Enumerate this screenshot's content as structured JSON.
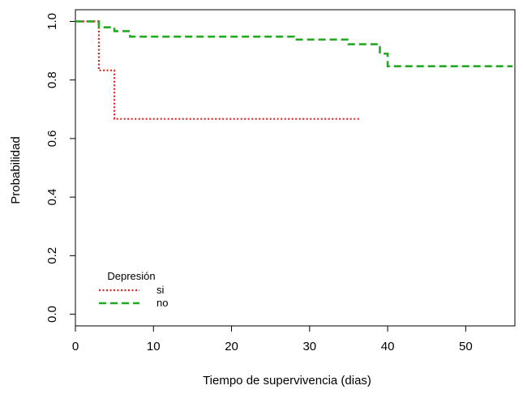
{
  "chart_data": {
    "type": "line",
    "step": true,
    "title": "",
    "xlabel": "Tiempo de supervivencia (dias)",
    "ylabel": "Probabilidad",
    "xlim": [
      0,
      56.3
    ],
    "ylim": [
      -0.04,
      1.04
    ],
    "x_ticks": [
      0,
      10,
      20,
      30,
      40,
      50
    ],
    "y_ticks": [
      0.0,
      0.2,
      0.4,
      0.6,
      0.8,
      1.0
    ],
    "x_tick_labels": [
      "0",
      "10",
      "20",
      "30",
      "40",
      "50"
    ],
    "y_tick_labels": [
      "0.0",
      "0.2",
      "0.4",
      "0.6",
      "0.8",
      "1.0"
    ],
    "grid": false,
    "legend": {
      "title": "Depresión",
      "placement": "bottom-left"
    },
    "series": [
      {
        "name": "si",
        "color": "#dd2222",
        "line_style": "dotted",
        "points": [
          [
            0,
            1.0
          ],
          [
            3,
            1.0
          ],
          [
            3,
            0.833
          ],
          [
            5,
            0.833
          ],
          [
            5,
            0.667
          ],
          [
            36.5,
            0.667
          ]
        ]
      },
      {
        "name": "no",
        "color": "#22aa22",
        "line_style": "dashed",
        "points": [
          [
            0,
            1.0
          ],
          [
            3,
            1.0
          ],
          [
            3,
            0.98
          ],
          [
            5,
            0.98
          ],
          [
            5,
            0.967
          ],
          [
            7,
            0.967
          ],
          [
            7,
            0.948
          ],
          [
            28,
            0.948
          ],
          [
            28,
            0.938
          ],
          [
            35,
            0.938
          ],
          [
            35,
            0.922
          ],
          [
            39,
            0.922
          ],
          [
            39,
            0.89
          ],
          [
            40,
            0.89
          ],
          [
            40,
            0.847
          ],
          [
            56,
            0.847
          ]
        ]
      }
    ]
  }
}
